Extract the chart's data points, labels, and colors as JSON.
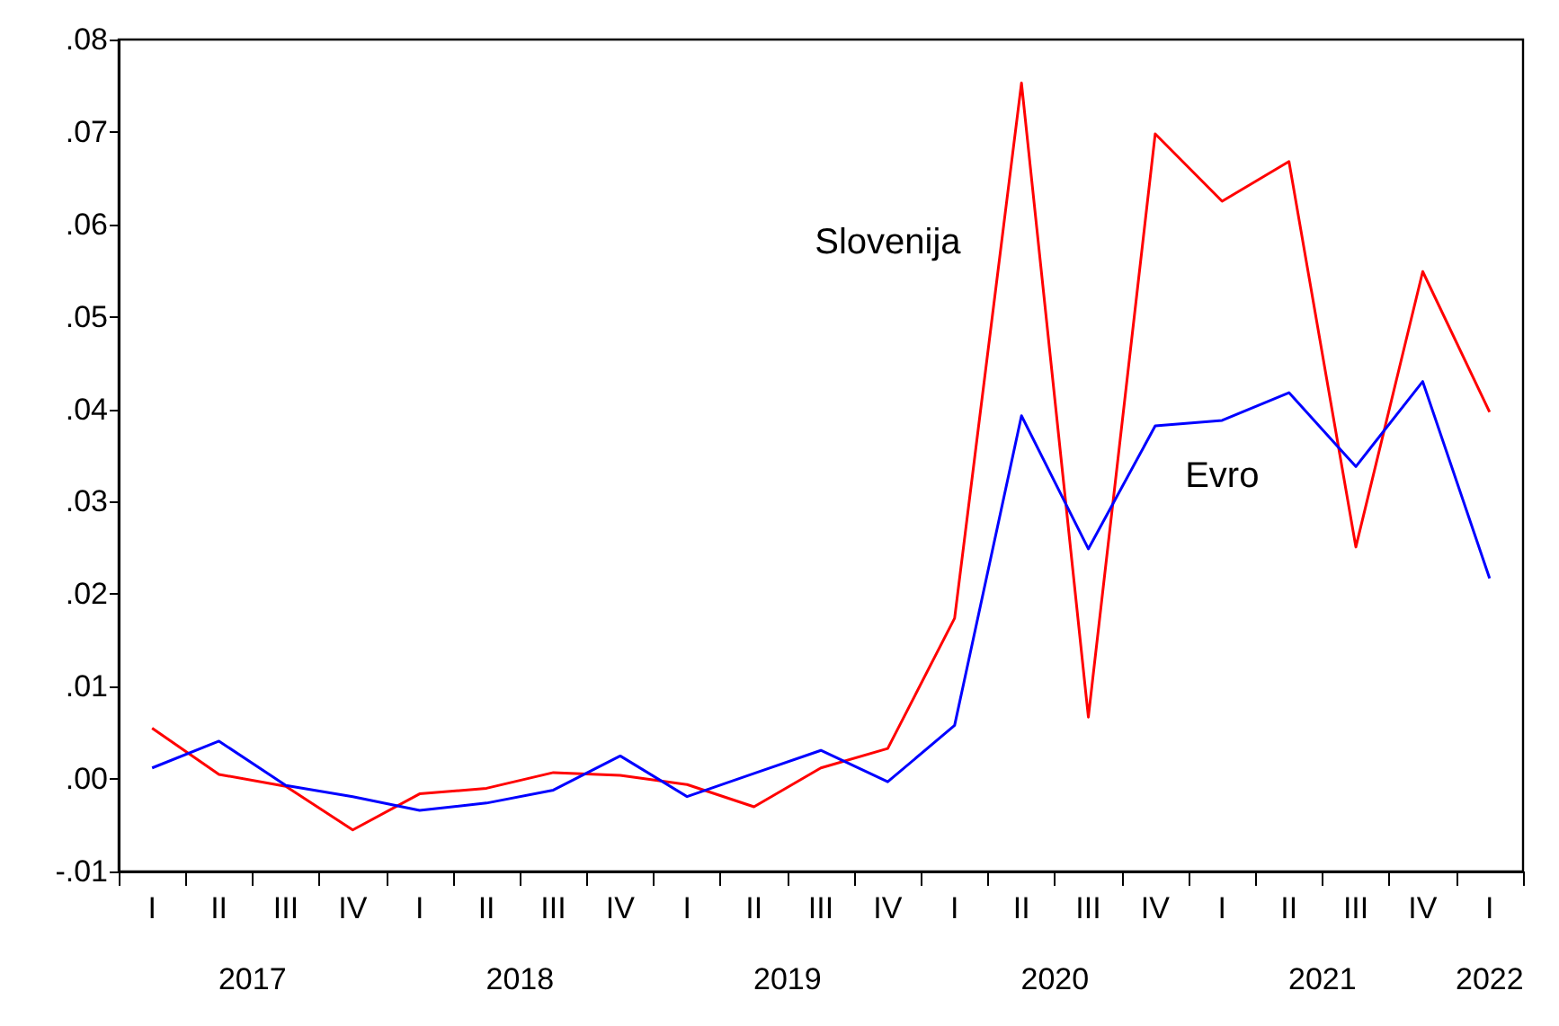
{
  "chart_data": {
    "type": "line",
    "categories": [
      "I",
      "II",
      "III",
      "IV",
      "I",
      "II",
      "III",
      "IV",
      "I",
      "II",
      "III",
      "IV",
      "I",
      "II",
      "III",
      "IV",
      "I",
      "II",
      "III",
      "IV",
      "I"
    ],
    "series": [
      {
        "name": "Slovenija",
        "color": "#ff0000",
        "values": [
          0.0055,
          0.0005,
          -0.0008,
          -0.0055,
          -0.0016,
          -0.001,
          0.0007,
          0.0004,
          -0.0006,
          -0.003,
          0.0012,
          0.0033,
          0.0174,
          0.0753,
          0.0067,
          0.0698,
          0.0625,
          0.0668,
          0.0251,
          0.0549,
          0.0397
        ]
      },
      {
        "name": "Evro",
        "color": "#0000ff",
        "values": [
          0.0012,
          0.0041,
          -0.0007,
          -0.0019,
          -0.0034,
          -0.0026,
          -0.0012,
          0.0025,
          -0.0019,
          0.0006,
          0.0031,
          -0.0003,
          0.0058,
          0.0393,
          0.0249,
          0.0382,
          0.0388,
          0.0418,
          0.0338,
          0.043,
          0.0217
        ]
      }
    ],
    "annotations": [
      "2017",
      "2018",
      "2019",
      "2020",
      "2021",
      "2022"
    ],
    "ylim": [
      -0.01,
      0.08
    ],
    "yticks": [
      {
        "value": -0.01,
        "label": "-.01"
      },
      {
        "value": 0,
        "label": ".00"
      },
      {
        "value": 0.01,
        "label": ".01"
      },
      {
        "value": 0.02,
        "label": ".02"
      },
      {
        "value": 0.03,
        "label": ".03"
      },
      {
        "value": 0.04,
        "label": ".04"
      },
      {
        "value": 0.05,
        "label": ".05"
      },
      {
        "value": 0.06,
        "label": ".06"
      },
      {
        "value": 0.07,
        "label": ".07"
      },
      {
        "value": 0.08,
        "label": ".08"
      }
    ],
    "grid": false,
    "legend": false,
    "marker": "none",
    "line_style": "solid"
  }
}
